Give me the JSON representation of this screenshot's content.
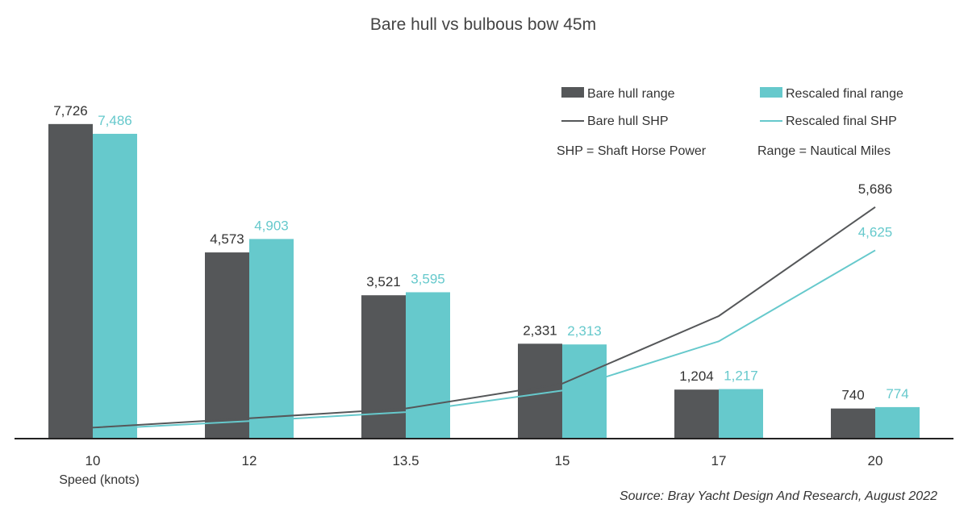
{
  "chart_data": {
    "type": "bar",
    "title": "Bare hull vs bulbous bow 45m",
    "xlabel": "Speed (knots)",
    "categories": [
      "10",
      "12",
      "13.5",
      "15",
      "17",
      "20"
    ],
    "series": [
      {
        "name": "Bare hull range",
        "type": "bar",
        "color": "#555759",
        "values": [
          7726,
          4573,
          3521,
          2331,
          1204,
          740
        ],
        "labels": [
          "7,726",
          "4,573",
          "3,521",
          "2,331",
          "1,204",
          "740"
        ]
      },
      {
        "name": "Rescaled final range",
        "type": "bar",
        "color": "#66c9cc",
        "values": [
          7486,
          4903,
          3595,
          2313,
          1217,
          774
        ],
        "labels": [
          "7,486",
          "4,903",
          "3,595",
          "2,313",
          "1,217",
          "774"
        ]
      },
      {
        "name": "Bare hull SHP",
        "type": "line",
        "color": "#555759",
        "values": [
          270,
          500,
          740,
          1350,
          3010,
          5686
        ],
        "labels": [
          "",
          "",
          "",
          "",
          "",
          "5,686"
        ]
      },
      {
        "name": "Rescaled final SHP",
        "type": "line",
        "color": "#66c9cc",
        "values": [
          230,
          430,
          650,
          1180,
          2390,
          4625
        ],
        "labels": [
          "",
          "",
          "",
          "",
          "",
          "4,625"
        ]
      }
    ],
    "ylim": [
      0,
      8000
    ],
    "grid": false,
    "legend_position": "top-right"
  },
  "notes": [
    "SHP = Shaft Horse Power",
    "Range = Nautical Miles"
  ],
  "source": "Source: Bray Yacht Design And Research, August 2022"
}
